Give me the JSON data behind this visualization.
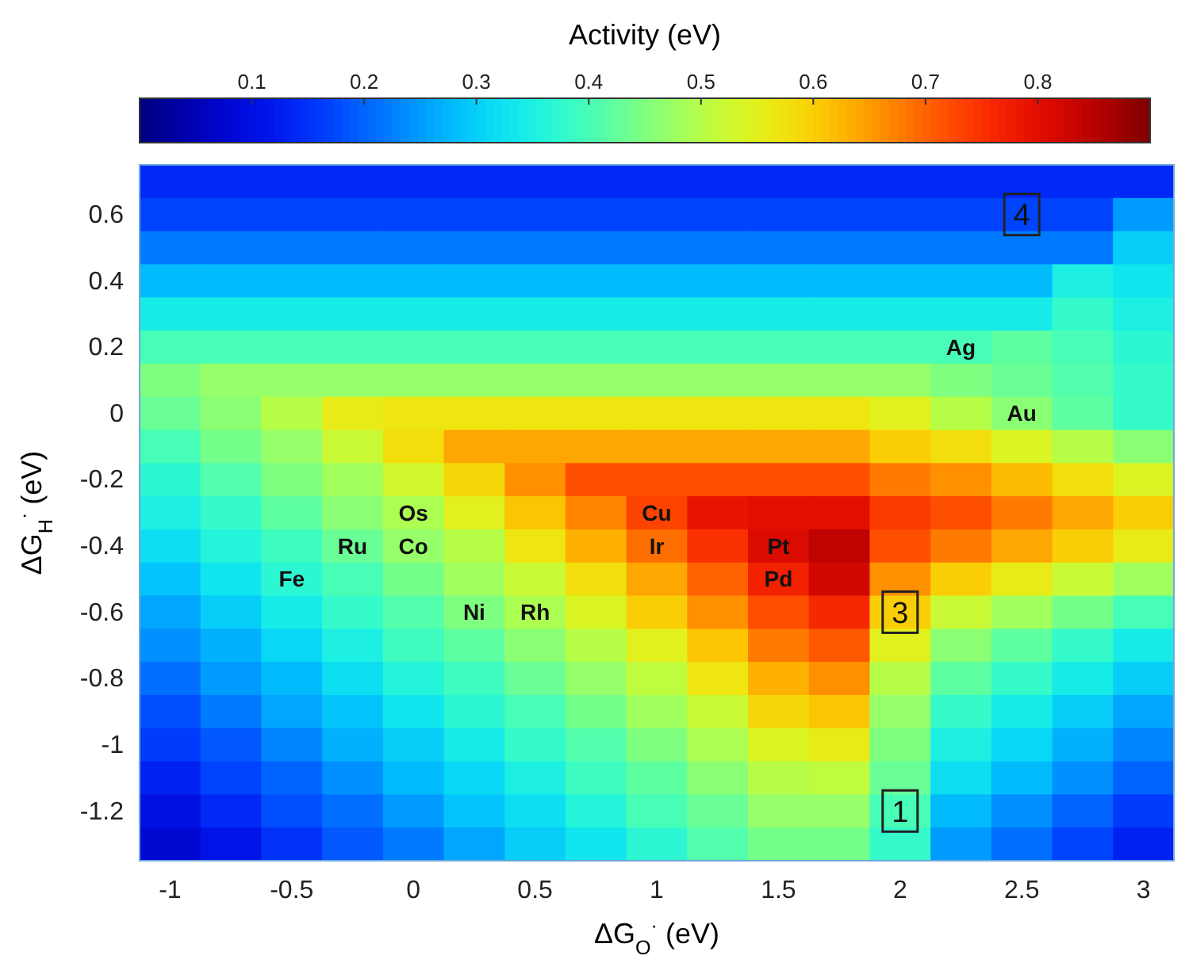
{
  "chart_data": {
    "type": "heatmap",
    "clabel": "Activity (eV)",
    "xlabel": "ΔG$_{O}$$^{·}$ (eV)",
    "ylabel": "ΔG$_{H}$$^{·}$ (eV)",
    "categories": [
      "-1",
      null,
      "-0.5",
      null,
      "0",
      null,
      "0.5",
      null,
      "1",
      null,
      "1.5",
      null,
      "2",
      null,
      "2.5",
      null,
      "3"
    ],
    "y_categories": [
      null,
      "0.6",
      null,
      "0.4",
      null,
      "0.2",
      null,
      "0",
      null,
      "-0.2",
      null,
      "-0.4",
      null,
      "-0.6",
      null,
      "-0.8",
      null,
      "-1",
      null,
      "-1.2",
      null
    ],
    "annotations": [
      {
        "text": "4",
        "x": "2.5",
        "y": "0.6"
      },
      {
        "text": "3",
        "x": "2",
        "y": "-0.6"
      },
      {
        "text": "1",
        "x": "2",
        "y": "-1.2"
      }
    ],
    "clim": [
      0,
      0.9
    ],
    "cticks": [
      0.1,
      0.2,
      0.3,
      0.4,
      0.5,
      0.6,
      0.7,
      0.8
    ],
    "cells": [
      [
        0.14,
        0.14,
        0.14,
        0.14,
        0.14,
        0.14,
        0.14,
        0.14,
        0.14,
        0.14,
        0.14,
        0.14,
        0.14,
        0.14,
        0.14,
        0.14,
        0.14
      ],
      [
        0.17,
        0.17,
        0.17,
        0.17,
        0.17,
        0.17,
        0.17,
        0.17,
        0.17,
        0.17,
        0.17,
        0.17,
        0.17,
        0.17,
        0.17,
        0.17,
        0.25
      ],
      [
        0.22,
        0.22,
        0.22,
        0.22,
        0.22,
        0.22,
        0.22,
        0.22,
        0.22,
        0.22,
        0.22,
        0.22,
        0.22,
        0.22,
        0.22,
        0.22,
        0.3
      ],
      [
        0.28,
        0.28,
        0.28,
        0.28,
        0.28,
        0.28,
        0.28,
        0.28,
        0.28,
        0.28,
        0.28,
        0.28,
        0.28,
        0.28,
        0.28,
        0.35,
        0.33
      ],
      [
        0.34,
        0.34,
        0.34,
        0.34,
        0.34,
        0.34,
        0.34,
        0.34,
        0.34,
        0.34,
        0.34,
        0.34,
        0.34,
        0.34,
        0.34,
        0.38,
        0.35
      ],
      [
        0.4,
        0.4,
        0.4,
        0.4,
        0.4,
        0.4,
        0.4,
        0.4,
        0.4,
        0.4,
        0.4,
        0.4,
        0.4,
        0.4,
        0.42,
        0.4,
        0.37
      ],
      [
        0.45,
        0.47,
        0.47,
        0.47,
        0.47,
        0.47,
        0.47,
        0.47,
        0.47,
        0.47,
        0.47,
        0.47,
        0.47,
        0.45,
        0.43,
        0.41,
        0.38
      ],
      [
        0.43,
        0.46,
        0.5,
        0.56,
        0.57,
        0.57,
        0.57,
        0.57,
        0.57,
        0.57,
        0.57,
        0.57,
        0.55,
        0.5,
        0.46,
        0.42,
        0.38
      ],
      [
        0.4,
        0.44,
        0.47,
        0.52,
        0.58,
        0.64,
        0.64,
        0.64,
        0.64,
        0.64,
        0.64,
        0.64,
        0.6,
        0.58,
        0.54,
        0.5,
        0.46
      ],
      [
        0.37,
        0.41,
        0.45,
        0.48,
        0.53,
        0.59,
        0.66,
        0.72,
        0.72,
        0.72,
        0.72,
        0.72,
        0.68,
        0.66,
        0.62,
        0.58,
        0.54
      ],
      [
        0.35,
        0.38,
        0.42,
        0.46,
        0.49,
        0.55,
        0.61,
        0.67,
        0.73,
        0.79,
        0.8,
        0.8,
        0.74,
        0.72,
        0.68,
        0.64,
        0.6
      ],
      [
        0.32,
        0.36,
        0.39,
        0.43,
        0.47,
        0.5,
        0.57,
        0.63,
        0.69,
        0.75,
        0.81,
        0.84,
        0.72,
        0.68,
        0.64,
        0.6,
        0.56
      ],
      [
        0.29,
        0.33,
        0.37,
        0.4,
        0.44,
        0.48,
        0.52,
        0.58,
        0.64,
        0.7,
        0.77,
        0.82,
        0.66,
        0.6,
        0.56,
        0.52,
        0.48
      ],
      [
        0.26,
        0.3,
        0.34,
        0.38,
        0.41,
        0.45,
        0.49,
        0.54,
        0.6,
        0.66,
        0.72,
        0.76,
        0.6,
        0.52,
        0.48,
        0.44,
        0.4
      ],
      [
        0.24,
        0.27,
        0.31,
        0.35,
        0.39,
        0.42,
        0.46,
        0.5,
        0.55,
        0.61,
        0.68,
        0.71,
        0.55,
        0.46,
        0.42,
        0.38,
        0.34
      ],
      [
        0.21,
        0.25,
        0.28,
        0.32,
        0.36,
        0.39,
        0.43,
        0.47,
        0.51,
        0.57,
        0.63,
        0.66,
        0.5,
        0.42,
        0.38,
        0.34,
        0.3
      ],
      [
        0.18,
        0.22,
        0.26,
        0.29,
        0.33,
        0.37,
        0.4,
        0.44,
        0.48,
        0.52,
        0.59,
        0.61,
        0.47,
        0.38,
        0.34,
        0.3,
        0.26
      ],
      [
        0.16,
        0.19,
        0.23,
        0.27,
        0.3,
        0.34,
        0.38,
        0.41,
        0.45,
        0.49,
        0.54,
        0.56,
        0.45,
        0.35,
        0.31,
        0.27,
        0.23
      ],
      [
        0.13,
        0.17,
        0.2,
        0.24,
        0.28,
        0.31,
        0.35,
        0.39,
        0.42,
        0.46,
        0.5,
        0.51,
        0.43,
        0.32,
        0.28,
        0.24,
        0.2
      ],
      [
        0.1,
        0.14,
        0.18,
        0.21,
        0.25,
        0.29,
        0.32,
        0.36,
        0.4,
        0.43,
        0.47,
        0.47,
        0.4,
        0.28,
        0.24,
        0.2,
        0.16
      ],
      [
        0.08,
        0.11,
        0.15,
        0.19,
        0.22,
        0.26,
        0.3,
        0.33,
        0.37,
        0.41,
        0.44,
        0.44,
        0.38,
        0.25,
        0.21,
        0.17,
        0.13
      ]
    ],
    "cell_labels": [
      [
        null,
        null,
        null,
        null,
        null,
        null,
        null,
        null,
        null,
        null,
        null,
        null,
        null,
        null,
        null,
        null,
        null
      ],
      [
        null,
        null,
        null,
        null,
        null,
        null,
        null,
        null,
        null,
        null,
        null,
        null,
        null,
        null,
        null,
        null,
        null
      ],
      [
        null,
        null,
        null,
        null,
        null,
        null,
        null,
        null,
        null,
        null,
        null,
        null,
        null,
        null,
        null,
        null,
        null
      ],
      [
        null,
        null,
        null,
        null,
        null,
        null,
        null,
        null,
        null,
        null,
        null,
        null,
        null,
        null,
        null,
        null,
        null
      ],
      [
        null,
        null,
        null,
        null,
        null,
        null,
        null,
        null,
        null,
        null,
        null,
        null,
        null,
        null,
        null,
        null,
        null
      ],
      [
        null,
        null,
        null,
        null,
        null,
        null,
        null,
        null,
        null,
        null,
        null,
        null,
        null,
        "Ag",
        null,
        null,
        null
      ],
      [
        null,
        null,
        null,
        null,
        null,
        null,
        null,
        null,
        null,
        null,
        null,
        null,
        null,
        null,
        null,
        null,
        null
      ],
      [
        null,
        null,
        null,
        null,
        null,
        null,
        null,
        null,
        null,
        null,
        null,
        null,
        null,
        null,
        "Au",
        null,
        null
      ],
      [
        null,
        null,
        null,
        null,
        null,
        null,
        null,
        null,
        null,
        null,
        null,
        null,
        null,
        null,
        null,
        null,
        null
      ],
      [
        null,
        null,
        null,
        null,
        null,
        null,
        null,
        null,
        null,
        null,
        null,
        null,
        null,
        null,
        null,
        null,
        null
      ],
      [
        null,
        null,
        null,
        null,
        "Os",
        null,
        null,
        null,
        "Cu",
        null,
        null,
        null,
        null,
        null,
        null,
        null,
        null
      ],
      [
        null,
        null,
        null,
        "Ru",
        "Co",
        null,
        null,
        null,
        "Ir",
        null,
        "Pt",
        null,
        null,
        null,
        null,
        null,
        null
      ],
      [
        null,
        null,
        "Fe",
        null,
        null,
        null,
        null,
        null,
        null,
        null,
        "Pd",
        null,
        null,
        null,
        null,
        null,
        null
      ],
      [
        null,
        null,
        null,
        null,
        null,
        "Ni",
        "Rh",
        null,
        null,
        null,
        null,
        null,
        null,
        null,
        null,
        null,
        null
      ],
      [
        null,
        null,
        null,
        null,
        null,
        null,
        null,
        null,
        null,
        null,
        null,
        null,
        null,
        null,
        null,
        null,
        null
      ],
      [
        null,
        null,
        null,
        null,
        null,
        null,
        null,
        null,
        null,
        null,
        null,
        null,
        null,
        null,
        null,
        null,
        null
      ],
      [
        null,
        null,
        null,
        null,
        null,
        null,
        null,
        null,
        null,
        null,
        null,
        null,
        null,
        null,
        null,
        null,
        null
      ],
      [
        null,
        null,
        null,
        null,
        null,
        null,
        null,
        null,
        null,
        null,
        null,
        null,
        null,
        null,
        null,
        null,
        null
      ],
      [
        null,
        null,
        null,
        null,
        null,
        null,
        null,
        null,
        null,
        null,
        null,
        null,
        null,
        null,
        null,
        null,
        null
      ],
      [
        null,
        null,
        null,
        null,
        null,
        null,
        null,
        null,
        null,
        null,
        null,
        null,
        null,
        null,
        null,
        null,
        null
      ],
      [
        null,
        null,
        null,
        null,
        null,
        null,
        null,
        null,
        null,
        null,
        null,
        null,
        null,
        null,
        null,
        null,
        null
      ]
    ]
  }
}
